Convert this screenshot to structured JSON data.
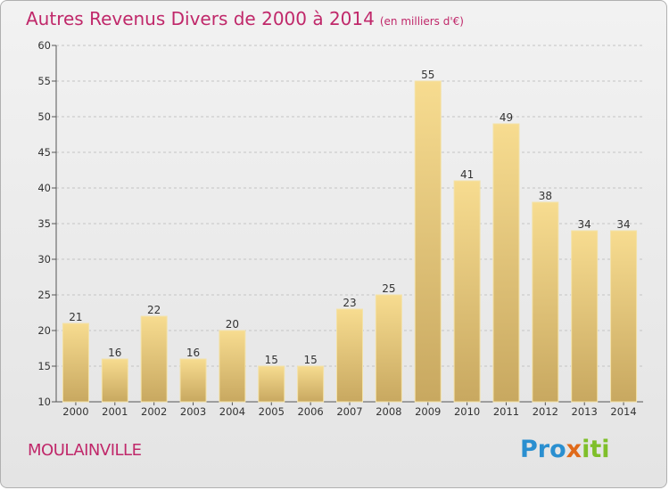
{
  "chart_data": {
    "type": "bar",
    "title": "Autres Revenus Divers de 2000 à 2014",
    "subtitle": "(en milliers d'€)",
    "categories": [
      "2000",
      "2001",
      "2002",
      "2003",
      "2004",
      "2005",
      "2006",
      "2007",
      "2008",
      "2009",
      "2010",
      "2011",
      "2012",
      "2013",
      "2014"
    ],
    "values": [
      21,
      16,
      22,
      16,
      20,
      15,
      15,
      23,
      25,
      55,
      41,
      49,
      38,
      34,
      34
    ],
    "ylim": [
      10,
      60
    ],
    "yticks": [
      10,
      15,
      20,
      25,
      30,
      35,
      40,
      45,
      50,
      55,
      60
    ],
    "grid": "horizontal dashed",
    "bar_color_top": "#f7dc90",
    "bar_color_bottom": "#c8a860",
    "xlabel": "",
    "ylabel": ""
  },
  "place_name": "MOULAINVILLE",
  "logo": {
    "part1": "Pro",
    "part2": "x",
    "part3": "iti"
  }
}
